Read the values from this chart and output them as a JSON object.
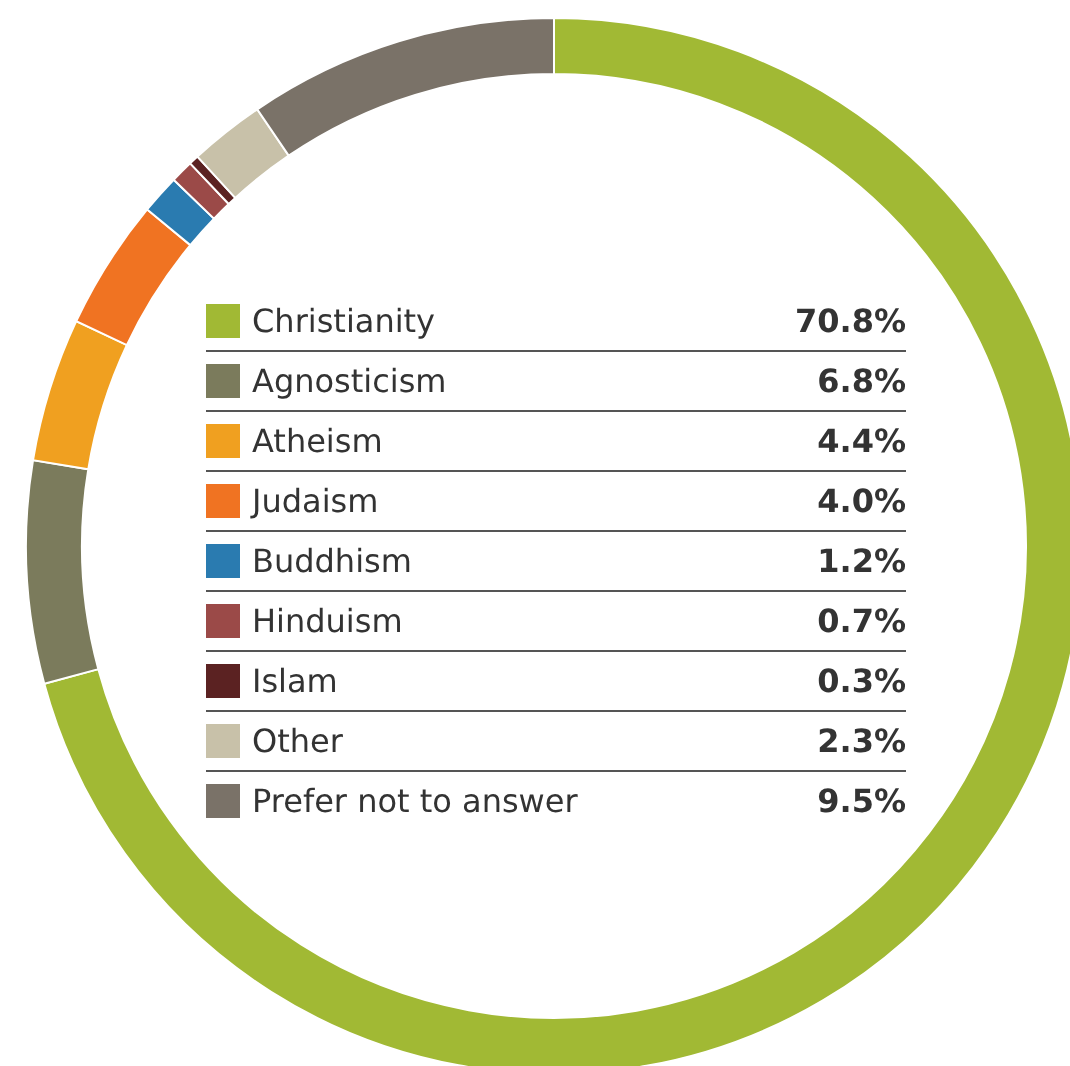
{
  "chart_data": {
    "type": "donut",
    "categories": [
      "Christianity",
      "Agnosticism",
      "Atheism",
      "Judaism",
      "Buddhism",
      "Hinduism",
      "Islam",
      "Other",
      "Prefer not to answer"
    ],
    "values": [
      70.8,
      6.8,
      4.4,
      4.0,
      1.2,
      0.7,
      0.3,
      2.3,
      9.5
    ],
    "colors": [
      "#a1b934",
      "#7b7b5c",
      "#f0a020",
      "#f07322",
      "#2a7bb0",
      "#9b4a48",
      "#5b2222",
      "#c8c1a9",
      "#7a7268"
    ],
    "value_labels": [
      "70.8%",
      "6.8%",
      "4.4%",
      "4.0%",
      "1.2%",
      "0.7%",
      "0.3%",
      "2.3%",
      "9.5%"
    ],
    "legend": "center"
  }
}
